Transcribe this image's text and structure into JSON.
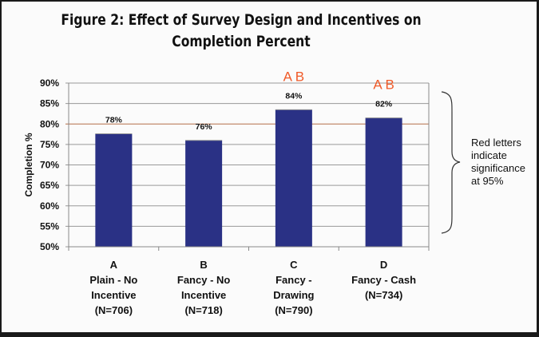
{
  "chart_data": {
    "type": "bar",
    "title": [
      "Figure 2: Effect of Survey Design and Incentives on",
      "Completion Percent"
    ],
    "xlabel": "",
    "ylabel": "Completion %",
    "ylim": [
      50,
      90
    ],
    "yticks": [
      "50%",
      "55%",
      "60%",
      "65%",
      "70%",
      "75%",
      "80%",
      "85%",
      "90%"
    ],
    "grid": true,
    "categories": [
      {
        "letter": "A",
        "lines": [
          "Plain - No",
          "Incentive",
          "(N=706)"
        ]
      },
      {
        "letter": "B",
        "lines": [
          "Fancy - No",
          "Incentive",
          "(N=718)"
        ]
      },
      {
        "letter": "C",
        "lines": [
          "Fancy -",
          "Drawing",
          "(N=790)"
        ]
      },
      {
        "letter": "D",
        "lines": [
          "Fancy - Cash",
          "(N=734)"
        ]
      }
    ],
    "values": [
      77.6,
      76.0,
      83.5,
      81.5
    ],
    "data_labels": [
      "78%",
      "76%",
      "84%",
      "82%"
    ],
    "significance": [
      "",
      "",
      "A B",
      "A B"
    ],
    "annotation": [
      "Red letters",
      "indicate",
      "significance",
      "at 95%"
    ],
    "colors": {
      "bar": "#2a3185",
      "significance": "#f05a28",
      "grid": "#999999",
      "highlight_grid": "#b5704a"
    }
  }
}
